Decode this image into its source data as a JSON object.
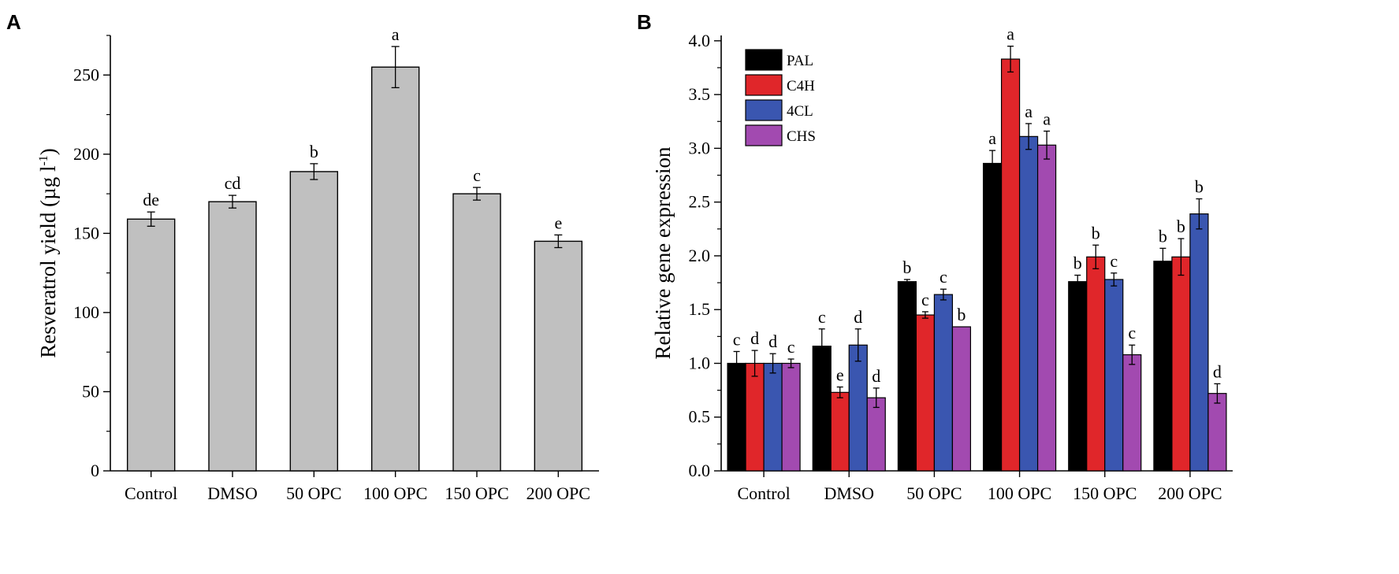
{
  "chart_data": [
    {
      "panel": "A",
      "type": "bar",
      "title": "",
      "xlabel": "",
      "ylabel": "Resveratrol yield (µg l",
      "ylabel_superscript": "-1",
      "ylabel_close": ")",
      "ylim": [
        0,
        275
      ],
      "yticks": [
        0,
        50,
        100,
        150,
        200,
        250
      ],
      "categories": [
        "Control",
        "DMSO",
        "50 OPC",
        "100 OPC",
        "150 OPC",
        "200 OPC"
      ],
      "values": [
        159,
        170,
        189,
        255,
        175,
        145
      ],
      "errors": [
        4.5,
        4,
        5,
        13,
        4,
        4
      ],
      "labels": [
        "de",
        "cd",
        "b",
        "a",
        "c",
        "e"
      ],
      "bar_color": "#c0c0c0"
    },
    {
      "panel": "B",
      "type": "bar",
      "title": "",
      "xlabel": "",
      "ylabel": "Relative gene expression",
      "ylim": [
        0,
        4.05
      ],
      "yticks": [
        "0.0",
        "0.5",
        "1.0",
        "1.5",
        "2.0",
        "2.5",
        "3.0",
        "3.5",
        "4.0"
      ],
      "categories": [
        "Control",
        "DMSO",
        "50 OPC",
        "100 OPC",
        "150 OPC",
        "200 OPC"
      ],
      "series": [
        {
          "name": "PAL",
          "color": "#000000",
          "values": [
            1.0,
            1.16,
            1.76,
            2.86,
            1.76,
            1.95
          ],
          "errors": [
            0.11,
            0.16,
            0.02,
            0.12,
            0.06,
            0.12
          ],
          "labels": [
            "c",
            "c",
            "b",
            "a",
            "b",
            "b"
          ]
        },
        {
          "name": "C4H",
          "color": "#e0262a",
          "values": [
            1.0,
            0.73,
            1.45,
            3.83,
            1.99,
            1.99
          ],
          "errors": [
            0.12,
            0.05,
            0.03,
            0.12,
            0.11,
            0.17
          ],
          "labels": [
            "d",
            "e",
            "c",
            "a",
            "b",
            "b"
          ]
        },
        {
          "name": "4CL",
          "color": "#3a56b0",
          "values": [
            1.0,
            1.17,
            1.64,
            3.11,
            1.78,
            2.39
          ],
          "errors": [
            0.09,
            0.15,
            0.05,
            0.12,
            0.06,
            0.14
          ],
          "labels": [
            "d",
            "d",
            "c",
            "a",
            "c",
            "b"
          ]
        },
        {
          "name": "CHS",
          "color": "#a24ab0",
          "values": [
            1.0,
            0.68,
            1.34,
            3.03,
            1.08,
            0.72
          ],
          "errors": [
            0.04,
            0.09,
            0.0,
            0.13,
            0.09,
            0.09
          ],
          "labels": [
            "c",
            "d",
            "b",
            "a",
            "c",
            "d"
          ]
        }
      ],
      "legend_position": "top-left"
    }
  ]
}
